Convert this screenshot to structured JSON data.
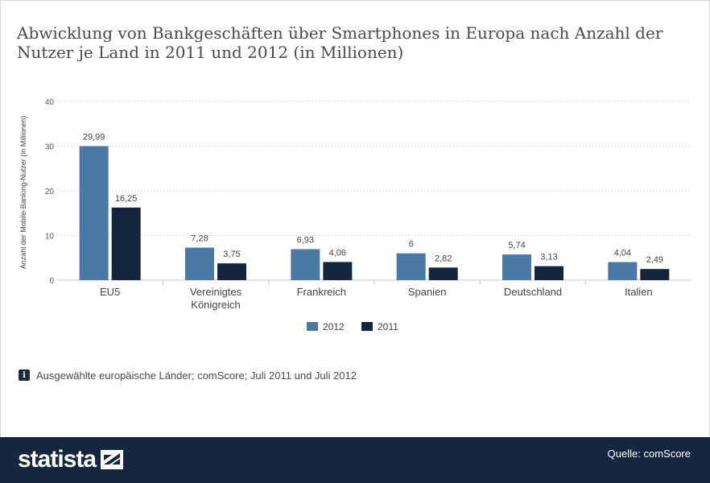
{
  "title": "Abwicklung von Bankgeschäften über Smartphones in Europa nach Anzahl der Nutzer je Land in 2011 und 2012 (in Millionen)",
  "info_text": "Ausgewählte europäische Länder; comScore; Juli 2011 und Juli 2012",
  "info_icon": "i",
  "footer": {
    "brand": "statista",
    "source": "Quelle: comScore"
  },
  "colors": {
    "series_2012": "#4a79a5",
    "series_2011": "#14263e",
    "grid": "#dcdcdc",
    "text": "#555555"
  },
  "chart_data": {
    "type": "bar",
    "title": "Abwicklung von Bankgeschäften über Smartphones in Europa nach Anzahl der Nutzer je Land in 2011 und 2012 (in Millionen)",
    "xlabel": "",
    "ylabel": "Anzahl der Mobile-Banking-Nutzer (in Millionen)",
    "ylim": [
      0,
      40
    ],
    "yticks": [
      0,
      10,
      20,
      30,
      40
    ],
    "grid": true,
    "legend_position": "bottom-center",
    "categories": [
      [
        "EU5"
      ],
      [
        "Vereinigtes",
        "Königreich"
      ],
      [
        "Frankreich"
      ],
      [
        "Spanien"
      ],
      [
        "Deutschland"
      ],
      [
        "Italien"
      ]
    ],
    "series": [
      {
        "name": "2012",
        "values": [
          29.99,
          7.28,
          6.93,
          6,
          5.74,
          4.04
        ],
        "labels": [
          "29,99",
          "7,28",
          "6,93",
          "6",
          "5,74",
          "4,04"
        ]
      },
      {
        "name": "2011",
        "values": [
          16.25,
          3.75,
          4.06,
          2.82,
          3.13,
          2.49
        ],
        "labels": [
          "16,25",
          "3,75",
          "4,06",
          "2,82",
          "3,13",
          "2,49"
        ]
      }
    ]
  }
}
